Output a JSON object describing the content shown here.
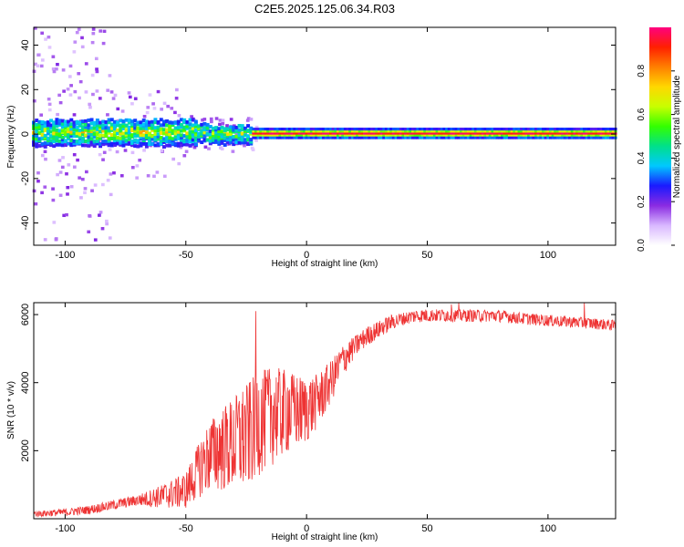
{
  "title": "C2E5.2025.125.06.34.R03",
  "chart_data": [
    {
      "type": "heatmap",
      "xlabel": "Height of straight line (km)",
      "ylabel": "Frequency (Hz)",
      "xlim": [
        -113,
        128
      ],
      "ylim": [
        -50,
        48
      ],
      "xticks": [
        -100,
        -50,
        0,
        50,
        100
      ],
      "yticks": [
        -40,
        -20,
        0,
        20,
        40
      ],
      "colorbar": {
        "label": "Normalized spectral amplitude",
        "range": [
          0,
          1
        ],
        "ticks": [
          0.0,
          0.2,
          0.4,
          0.6,
          0.8
        ],
        "colors": [
          "#ffffff",
          "#d9b8ff",
          "#8a2be2",
          "#1a1aff",
          "#00c8ff",
          "#00e08a",
          "#33ff00",
          "#c8ff00",
          "#ffd700",
          "#ff7f00",
          "#ff2000",
          "#ff007f"
        ]
      },
      "features": {
        "persistent_line_hz": 0,
        "persistent_line_from_km": -22,
        "strong_core_amplitude": 1.0,
        "broadband_scatter_range_km": [
          -113,
          -20
        ],
        "broadband_halfwidth_hz": 6
      }
    },
    {
      "type": "line",
      "xlabel": "Height of straight line (km)",
      "ylabel": "SNR (10 * v/v)",
      "xlim": [
        -113,
        128
      ],
      "ylim": [
        0,
        6350
      ],
      "xticks": [
        -100,
        -50,
        0,
        50,
        100
      ],
      "yticks": [
        2000,
        4000,
        6000
      ],
      "color": "#ee3333",
      "envelope": {
        "x": [
          -113,
          -100,
          -90,
          -80,
          -70,
          -60,
          -50,
          -45,
          -40,
          -35,
          -30,
          -25,
          -20,
          -15,
          -10,
          -5,
          0,
          5,
          10,
          15,
          20,
          25,
          30,
          35,
          40,
          45,
          50,
          60,
          70,
          80,
          90,
          100,
          110,
          120,
          128
        ],
        "y": [
          150,
          200,
          280,
          420,
          560,
          700,
          900,
          1500,
          2000,
          2200,
          2400,
          2600,
          3000,
          3200,
          3300,
          3300,
          3300,
          3600,
          4100,
          4700,
          5100,
          5400,
          5600,
          5800,
          5900,
          5980,
          6000,
          6000,
          5990,
          5980,
          5900,
          5850,
          5800,
          5750,
          5700
        ]
      },
      "noise_amplitude": {
        "x": [
          -113,
          -70,
          -50,
          -40,
          -25,
          -15,
          0,
          10,
          20,
          40,
          128
        ],
        "y": [
          80,
          150,
          500,
          1000,
          1500,
          1400,
          900,
          600,
          300,
          180,
          150
        ]
      },
      "peaks": [
        {
          "x": -21,
          "y": 6100
        },
        {
          "x": 60,
          "y": 6300
        },
        {
          "x": 63,
          "y": 6350
        },
        {
          "x": 115,
          "y": 6350
        }
      ]
    }
  ]
}
